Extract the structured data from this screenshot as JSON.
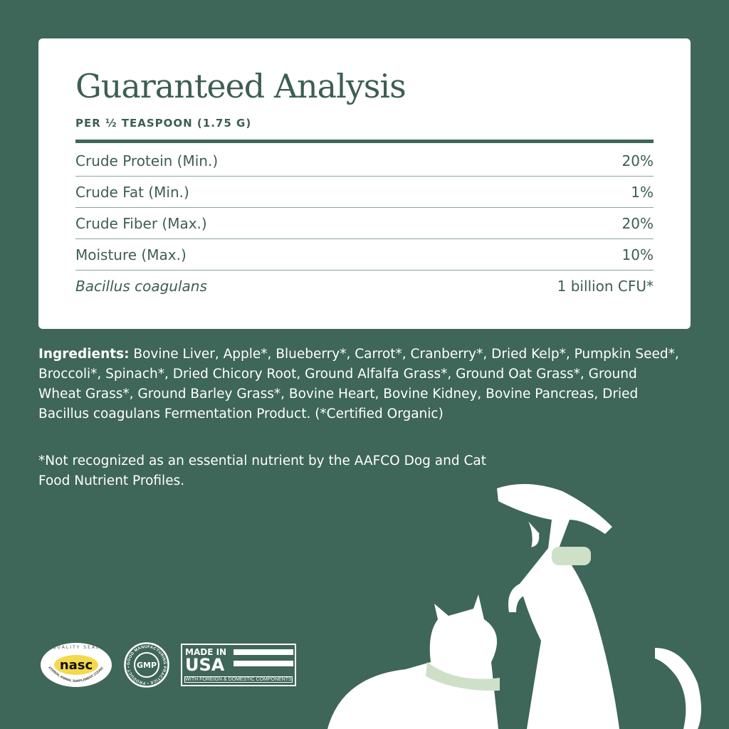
{
  "analysis": {
    "title": "Guaranteed Analysis",
    "subtitle": "PER ½ TEASPOON (1.75 G)",
    "rows": [
      {
        "label": "Crude Protein (Min.)",
        "value": "20%"
      },
      {
        "label": "Crude Fat (Min.)",
        "value": "1%"
      },
      {
        "label": "Crude Fiber (Max.)",
        "value": "20%"
      },
      {
        "label": "Moisture (Max.)",
        "value": "10%"
      },
      {
        "label": "Bacillus coagulans",
        "value": "1 billion CFU*"
      }
    ]
  },
  "ingredients": {
    "label": "Ingredients:",
    "text": " Bovine Liver,  Apple*, Blueberry*, Carrot*, Cranberry*, Dried Kelp*, Pumpkin Seed*, Broccoli*, Spinach*, Dried Chicory Root, Ground Alfalfa Grass*, Ground Oat Grass*, Ground Wheat Grass*, Ground Barley Grass*, Bovine Heart, Bovine Kidney, Bovine Pancreas, Dried Bacillus coagulans Fermentation Product. (*Certified Organic)"
  },
  "note": "*Not recognized as an essential nutrient by the AAFCO Dog and Cat Food Nutrient Profiles.",
  "badges": {
    "nasc": {
      "top": "QUALITY SEAL",
      "logo": "nasc",
      "bottom": "NATIONAL ANIMAL SUPPLEMENT COUNCIL"
    },
    "gmp": {
      "ring": "GOOD MANUFACTURING PRACTICE • PRODUCT •",
      "center": "GMP"
    },
    "usa": {
      "line1": "MADE IN",
      "line2": "USA",
      "footer": "WITH FOREIGN & DOMESTIC COMPONENTS"
    }
  },
  "colors": {
    "background": "#3e6659",
    "card": "#ffffff",
    "text_dark": "#3d5e52",
    "collar": "#cfe0c8"
  }
}
